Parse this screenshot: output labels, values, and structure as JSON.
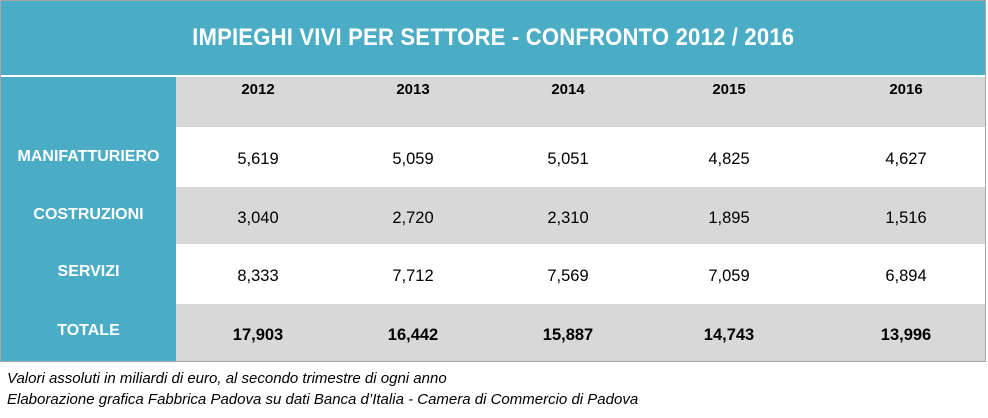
{
  "table": {
    "title": "IMPIEGHI VIVI PER SETTORE - CONFRONTO 2012 / 2016",
    "years": [
      "2012",
      "2013",
      "2014",
      "2015",
      "2016"
    ],
    "rows": [
      {
        "label": "MANIFATTURIERO",
        "values": [
          "5,619",
          "5,059",
          "5,051",
          "4,825",
          "4,627"
        ]
      },
      {
        "label": "COSTRUZIONI",
        "values": [
          "3,040",
          "2,720",
          "2,310",
          "1,895",
          "1,516"
        ]
      },
      {
        "label": "SERVIZI",
        "values": [
          "8,333",
          "7,712",
          "7,569",
          "7,059",
          "6,894"
        ]
      },
      {
        "label": "TOTALE",
        "values": [
          "17,903",
          "16,442",
          "15,887",
          "14,743",
          "13,996"
        ]
      }
    ],
    "colors": {
      "header_fill": "#4bacc6",
      "stripe_fill": "#d8d8d8",
      "header_text": "#ffffff"
    }
  },
  "notes": [
    "Valori assoluti in miliardi di euro, al secondo trimestre di ogni anno",
    "Elaborazione grafica Fabbrica Padova su dati Banca d’Italia - Camera di Commercio di Padova"
  ]
}
